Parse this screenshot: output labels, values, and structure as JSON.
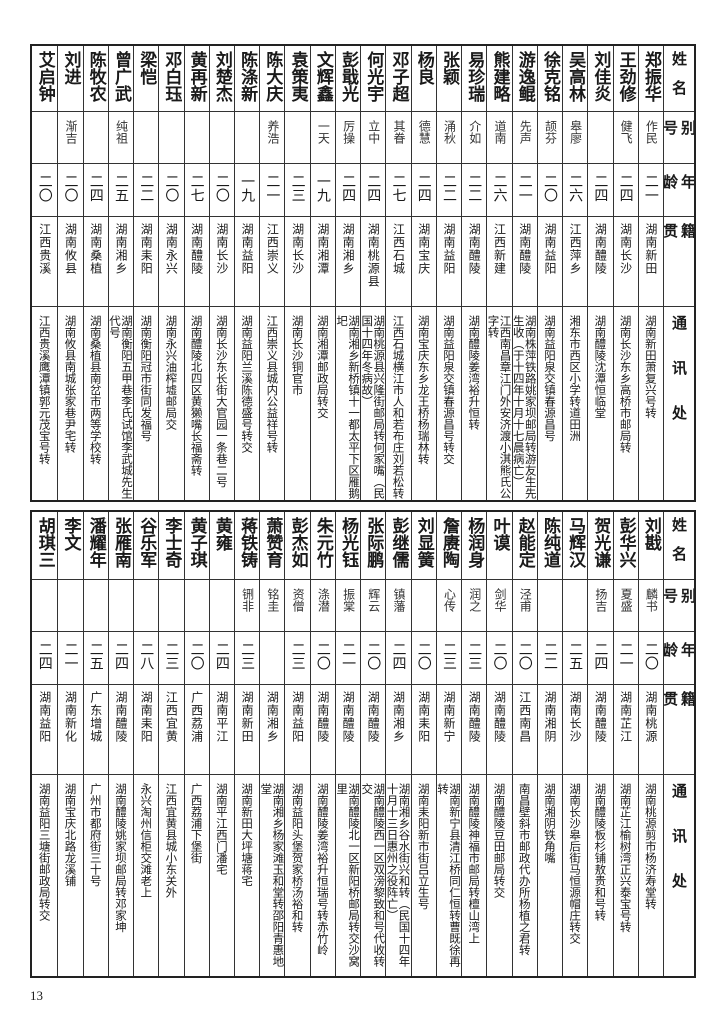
{
  "headers": {
    "name": "姓名",
    "alias": "别号",
    "age": "年龄",
    "native_place": "籍贯",
    "address": "通讯处"
  },
  "top_table": [
    {
      "name": "郑振华",
      "alias": "作民",
      "age": "二一",
      "native_place": "湖南新田",
      "address": "湖南新田萧复兴号转"
    },
    {
      "name": "王劲修",
      "alias": "健飞",
      "age": "二四",
      "native_place": "湖南长沙",
      "address": "湖南长沙东乡高桥市邮局转"
    },
    {
      "name": "刘佳炎",
      "alias": "",
      "age": "二四",
      "native_place": "湖南醴陵",
      "address": "湖南醴陵沈潭恒临堂"
    },
    {
      "name": "吴高林",
      "alias": "皋廖",
      "age": "二六",
      "native_place": "江西萍乡",
      "address": "湘东市西区小学转道田洲"
    },
    {
      "name": "徐克铭",
      "alias": "颉芬",
      "age": "二〇",
      "native_place": "湖南益阳",
      "address": "湖南益阳泉交镇春源昌号"
    },
    {
      "name": "游逸鲲",
      "alias": "先声",
      "age": "二一",
      "native_place": "湖南醴陵",
      "address": "湖南株萍铁路姚家坝邮局转游友生先生收（于十四年十月十七晨病亡）"
    },
    {
      "name": "熊建略",
      "alias": "道南",
      "age": "二六",
      "native_place": "江西新建",
      "address": "江西南昌章江门外安济渡小淇熊氏公字转"
    },
    {
      "name": "易珍瑞",
      "alias": "介如",
      "age": "二二",
      "native_place": "湖南醴陵",
      "address": "湖南醴陵姜湾裕升恒转"
    },
    {
      "name": "张颖",
      "alias": "涌秋",
      "age": "二二",
      "native_place": "湖南益阳",
      "address": "湖南益阳泉交镇春源昌号转交"
    },
    {
      "name": "杨良",
      "alias": "德慧",
      "age": "二四",
      "native_place": "湖南宝庆",
      "address": "湖南宝庆东乡龙王桥杨瑞林转"
    },
    {
      "name": "邓子超",
      "alias": "其眷",
      "age": "二七",
      "native_place": "江西石城",
      "address": "江西石城横江市人和若布庄刘若松转"
    },
    {
      "name": "何光宇",
      "alias": "立中",
      "age": "二四",
      "native_place": "湖南桃源县",
      "address": "湖南桃源县兴隆街邮局转何家嘴（民国十四年冬病故）"
    },
    {
      "name": "彭戢光",
      "alias": "厉操",
      "age": "二四",
      "native_place": "湖南湘乡",
      "address": "湖南湘乡新桥镇十一都太平下区雁鹅圯"
    },
    {
      "name": "文辉鑫",
      "alias": "一天",
      "age": "一九",
      "native_place": "湖南湘潭",
      "address": "湖南湘潭邮政局转交"
    },
    {
      "name": "袁策夷",
      "alias": "",
      "age": "二三",
      "native_place": "湖南长沙",
      "address": "湖南长沙铜官市"
    },
    {
      "name": "陈大庆",
      "alias": "养浩",
      "age": "二一",
      "native_place": "江西崇义",
      "address": "江西崇义县城内公益祥号转"
    },
    {
      "name": "陈涤新",
      "alias": "",
      "age": "一九",
      "native_place": "湖南益阳",
      "address": "湖南益阳兰溪陈德盛号转交"
    },
    {
      "name": "刘楚杰",
      "alias": "",
      "age": "二〇",
      "native_place": "湖南长沙",
      "address": "湖南长沙东长街大官园一条巷二号"
    },
    {
      "name": "黄再新",
      "alias": "",
      "age": "二七",
      "native_place": "湖南醴陵",
      "address": "湖南醴陵北四区黄獭嘴长福斋转"
    },
    {
      "name": "邓白珏",
      "alias": "",
      "age": "二〇",
      "native_place": "湖南永兴",
      "address": "湖南永兴油榨墟邮局交"
    },
    {
      "name": "梁恺",
      "alias": "",
      "age": "二二",
      "native_place": "湖南耒阳",
      "address": "湖南衡阳冠市街同发福号"
    },
    {
      "name": "曾广武",
      "alias": "纯祖",
      "age": "二五",
      "native_place": "湖南湘乡",
      "address": "湖南衡阳五甲巷李氏试馆李武城先生代号"
    },
    {
      "name": "陈牧农",
      "alias": "",
      "age": "二四",
      "native_place": "湖南桑植",
      "address": "湖南桑植县南岔市两等学校转"
    },
    {
      "name": "刘进",
      "alias": "渐吉",
      "age": "二〇",
      "native_place": "湖南攸县",
      "address": "湖南攸县南城张家巷尹宅转"
    },
    {
      "name": "艾启钟",
      "alias": "",
      "age": "二〇",
      "native_place": "江西贵溪",
      "address": "江西贵溪鹰潭镇郭元茂宝号转"
    }
  ],
  "bottom_table": [
    {
      "name": "刘戡",
      "alias": "麟书",
      "age": "二〇",
      "native_place": "湖南桃源",
      "address": "湖南桃源剪市杨济寿堂转"
    },
    {
      "name": "彭华兴",
      "alias": "夏盛",
      "age": "二一",
      "native_place": "湖南芷江",
      "address": "湖南芷江榆树湾正兴泰宝号转"
    },
    {
      "name": "贺光谦",
      "alias": "扬吉",
      "age": "二四",
      "native_place": "湖南醴陵",
      "address": "湖南醴陵板杉铺敖贵和号转"
    },
    {
      "name": "马辉汉",
      "alias": "",
      "age": "二五",
      "native_place": "湖南长沙",
      "address": "湖南长沙皋后街马恒源帽庄转交"
    },
    {
      "name": "陈纯道",
      "alias": "",
      "age": "二二",
      "native_place": "湖南湘阴",
      "address": "湖南湘阴铁角嘴"
    },
    {
      "name": "赵能定",
      "alias": "泾甫",
      "age": "二〇",
      "native_place": "江西南昌",
      "address": "南昌壁斜市邮政代办所杨植之君转"
    },
    {
      "name": "叶谟",
      "alias": "剑华",
      "age": "二〇",
      "native_place": "湖南醴陵",
      "address": "湖南醴陵豆田邮局转交"
    },
    {
      "name": "杨润身",
      "alias": "润之",
      "age": "二三",
      "native_place": "湖南醴陵",
      "address": "湖南醴陵神福市邮局转檀山湾上"
    },
    {
      "name": "詹赓陶",
      "alias": "心传",
      "age": "二三",
      "native_place": "湖南新宁",
      "address": "湖南新宁县清江桥同仁恒转曹既徐再转"
    },
    {
      "name": "刘显簧",
      "alias": "",
      "age": "二〇",
      "native_place": "湖南耒阳",
      "address": "湖南耒阳新市街吕立生号"
    },
    {
      "name": "彭继儒",
      "alias": "镇藩",
      "age": "二四",
      "native_place": "湖南湘乡",
      "address": "湖南湘乡谷水街兴和转（民国十四年十月十三日惠州之役阵亡）"
    },
    {
      "name": "张际鹏",
      "alias": "辉云",
      "age": "二〇",
      "native_place": "湖南醴陵",
      "address": "湖南醴陵西一区双滂黎致和号代收转交"
    },
    {
      "name": "杨光钰",
      "alias": "振棠",
      "age": "二一",
      "native_place": "湖南醴陵",
      "address": "湖南醴陵北一区新阳桥邮局转交沙窝里"
    },
    {
      "name": "朱元竹",
      "alias": "涤潜",
      "age": "二〇",
      "native_place": "湖南醴陵",
      "address": "湖南醴陵姜湾裕升恒瑞号转赤竹岭"
    },
    {
      "name": "彭杰如",
      "alias": "资僧",
      "age": "二三",
      "native_place": "湖南益阳",
      "address": "湖南益阳头堡贺家桥汤裕和转"
    },
    {
      "name": "萧赞育",
      "alias": "铭圭",
      "age": "",
      "native_place": "湖南湘乡",
      "address": "湖南湘乡杨家滩玉和堂转邵阳青惠地堂"
    },
    {
      "name": "蒋铁铸",
      "alias": "铏非",
      "age": "二三",
      "native_place": "湖南新田",
      "address": "湖南新田大坪塘蒋宅"
    },
    {
      "name": "黄雍",
      "alias": "",
      "age": "二四",
      "native_place": "湖南平江",
      "address": "湖南平江西门潘宅"
    },
    {
      "name": "黄子琪",
      "alias": "",
      "age": "二〇",
      "native_place": "广西荔浦",
      "address": "广西荔浦下堡街"
    },
    {
      "name": "李士奇",
      "alias": "",
      "age": "二三",
      "native_place": "江西宜黄",
      "address": "江西宜黄县城小东关外"
    },
    {
      "name": "谷乐军",
      "alias": "",
      "age": "二八",
      "native_place": "湖南耒阳",
      "address": "永兴淘州信柜交滩老上"
    },
    {
      "name": "张雁南",
      "alias": "",
      "age": "二四",
      "native_place": "湖南醴陵",
      "address": "湖南醴陵姚家坝邮局转邓家坤"
    },
    {
      "name": "潘耀年",
      "alias": "",
      "age": "二五",
      "native_place": "广东增城",
      "address": "广州市都府街三十号"
    },
    {
      "name": "李文",
      "alias": "",
      "age": "二一",
      "native_place": "湖南新化",
      "address": "湖南宝庆北路龙溪铺"
    },
    {
      "name": "胡琪三",
      "alias": "",
      "age": "二四",
      "native_place": "湖南益阳",
      "address": "湖南益阳三塘街邮政局转交"
    }
  ],
  "page_number": "13"
}
